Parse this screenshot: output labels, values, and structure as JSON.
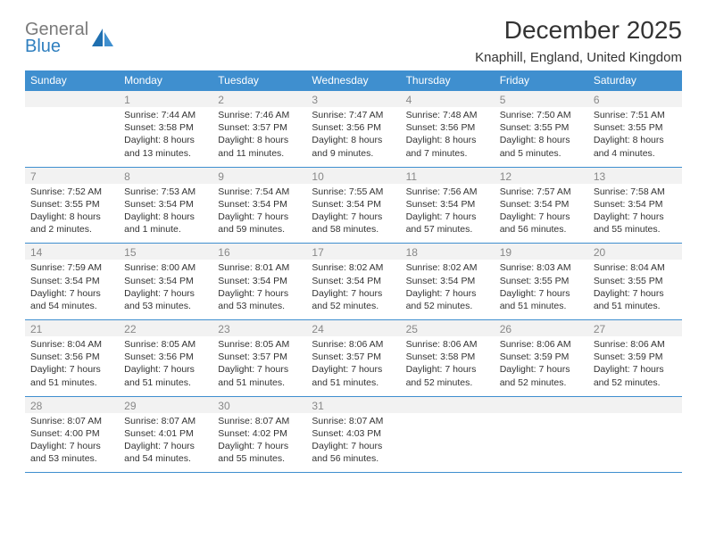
{
  "logo": {
    "line1": "General",
    "line2": "Blue"
  },
  "header": {
    "title": "December 2025",
    "location": "Knaphill, England, United Kingdom"
  },
  "colors": {
    "header_bg": "#3f8fcf",
    "daynum_bg": "#f2f2f2",
    "daynum_text": "#888888",
    "rule": "#3f8fcf"
  },
  "calendar": {
    "day_names": [
      "Sunday",
      "Monday",
      "Tuesday",
      "Wednesday",
      "Thursday",
      "Friday",
      "Saturday"
    ],
    "first_weekday_index": 1,
    "days": [
      {
        "n": "1",
        "sunrise": "Sunrise: 7:44 AM",
        "sunset": "Sunset: 3:58 PM",
        "daylight1": "Daylight: 8 hours",
        "daylight2": "and 13 minutes."
      },
      {
        "n": "2",
        "sunrise": "Sunrise: 7:46 AM",
        "sunset": "Sunset: 3:57 PM",
        "daylight1": "Daylight: 8 hours",
        "daylight2": "and 11 minutes."
      },
      {
        "n": "3",
        "sunrise": "Sunrise: 7:47 AM",
        "sunset": "Sunset: 3:56 PM",
        "daylight1": "Daylight: 8 hours",
        "daylight2": "and 9 minutes."
      },
      {
        "n": "4",
        "sunrise": "Sunrise: 7:48 AM",
        "sunset": "Sunset: 3:56 PM",
        "daylight1": "Daylight: 8 hours",
        "daylight2": "and 7 minutes."
      },
      {
        "n": "5",
        "sunrise": "Sunrise: 7:50 AM",
        "sunset": "Sunset: 3:55 PM",
        "daylight1": "Daylight: 8 hours",
        "daylight2": "and 5 minutes."
      },
      {
        "n": "6",
        "sunrise": "Sunrise: 7:51 AM",
        "sunset": "Sunset: 3:55 PM",
        "daylight1": "Daylight: 8 hours",
        "daylight2": "and 4 minutes."
      },
      {
        "n": "7",
        "sunrise": "Sunrise: 7:52 AM",
        "sunset": "Sunset: 3:55 PM",
        "daylight1": "Daylight: 8 hours",
        "daylight2": "and 2 minutes."
      },
      {
        "n": "8",
        "sunrise": "Sunrise: 7:53 AM",
        "sunset": "Sunset: 3:54 PM",
        "daylight1": "Daylight: 8 hours",
        "daylight2": "and 1 minute."
      },
      {
        "n": "9",
        "sunrise": "Sunrise: 7:54 AM",
        "sunset": "Sunset: 3:54 PM",
        "daylight1": "Daylight: 7 hours",
        "daylight2": "and 59 minutes."
      },
      {
        "n": "10",
        "sunrise": "Sunrise: 7:55 AM",
        "sunset": "Sunset: 3:54 PM",
        "daylight1": "Daylight: 7 hours",
        "daylight2": "and 58 minutes."
      },
      {
        "n": "11",
        "sunrise": "Sunrise: 7:56 AM",
        "sunset": "Sunset: 3:54 PM",
        "daylight1": "Daylight: 7 hours",
        "daylight2": "and 57 minutes."
      },
      {
        "n": "12",
        "sunrise": "Sunrise: 7:57 AM",
        "sunset": "Sunset: 3:54 PM",
        "daylight1": "Daylight: 7 hours",
        "daylight2": "and 56 minutes."
      },
      {
        "n": "13",
        "sunrise": "Sunrise: 7:58 AM",
        "sunset": "Sunset: 3:54 PM",
        "daylight1": "Daylight: 7 hours",
        "daylight2": "and 55 minutes."
      },
      {
        "n": "14",
        "sunrise": "Sunrise: 7:59 AM",
        "sunset": "Sunset: 3:54 PM",
        "daylight1": "Daylight: 7 hours",
        "daylight2": "and 54 minutes."
      },
      {
        "n": "15",
        "sunrise": "Sunrise: 8:00 AM",
        "sunset": "Sunset: 3:54 PM",
        "daylight1": "Daylight: 7 hours",
        "daylight2": "and 53 minutes."
      },
      {
        "n": "16",
        "sunrise": "Sunrise: 8:01 AM",
        "sunset": "Sunset: 3:54 PM",
        "daylight1": "Daylight: 7 hours",
        "daylight2": "and 53 minutes."
      },
      {
        "n": "17",
        "sunrise": "Sunrise: 8:02 AM",
        "sunset": "Sunset: 3:54 PM",
        "daylight1": "Daylight: 7 hours",
        "daylight2": "and 52 minutes."
      },
      {
        "n": "18",
        "sunrise": "Sunrise: 8:02 AM",
        "sunset": "Sunset: 3:54 PM",
        "daylight1": "Daylight: 7 hours",
        "daylight2": "and 52 minutes."
      },
      {
        "n": "19",
        "sunrise": "Sunrise: 8:03 AM",
        "sunset": "Sunset: 3:55 PM",
        "daylight1": "Daylight: 7 hours",
        "daylight2": "and 51 minutes."
      },
      {
        "n": "20",
        "sunrise": "Sunrise: 8:04 AM",
        "sunset": "Sunset: 3:55 PM",
        "daylight1": "Daylight: 7 hours",
        "daylight2": "and 51 minutes."
      },
      {
        "n": "21",
        "sunrise": "Sunrise: 8:04 AM",
        "sunset": "Sunset: 3:56 PM",
        "daylight1": "Daylight: 7 hours",
        "daylight2": "and 51 minutes."
      },
      {
        "n": "22",
        "sunrise": "Sunrise: 8:05 AM",
        "sunset": "Sunset: 3:56 PM",
        "daylight1": "Daylight: 7 hours",
        "daylight2": "and 51 minutes."
      },
      {
        "n": "23",
        "sunrise": "Sunrise: 8:05 AM",
        "sunset": "Sunset: 3:57 PM",
        "daylight1": "Daylight: 7 hours",
        "daylight2": "and 51 minutes."
      },
      {
        "n": "24",
        "sunrise": "Sunrise: 8:06 AM",
        "sunset": "Sunset: 3:57 PM",
        "daylight1": "Daylight: 7 hours",
        "daylight2": "and 51 minutes."
      },
      {
        "n": "25",
        "sunrise": "Sunrise: 8:06 AM",
        "sunset": "Sunset: 3:58 PM",
        "daylight1": "Daylight: 7 hours",
        "daylight2": "and 52 minutes."
      },
      {
        "n": "26",
        "sunrise": "Sunrise: 8:06 AM",
        "sunset": "Sunset: 3:59 PM",
        "daylight1": "Daylight: 7 hours",
        "daylight2": "and 52 minutes."
      },
      {
        "n": "27",
        "sunrise": "Sunrise: 8:06 AM",
        "sunset": "Sunset: 3:59 PM",
        "daylight1": "Daylight: 7 hours",
        "daylight2": "and 52 minutes."
      },
      {
        "n": "28",
        "sunrise": "Sunrise: 8:07 AM",
        "sunset": "Sunset: 4:00 PM",
        "daylight1": "Daylight: 7 hours",
        "daylight2": "and 53 minutes."
      },
      {
        "n": "29",
        "sunrise": "Sunrise: 8:07 AM",
        "sunset": "Sunset: 4:01 PM",
        "daylight1": "Daylight: 7 hours",
        "daylight2": "and 54 minutes."
      },
      {
        "n": "30",
        "sunrise": "Sunrise: 8:07 AM",
        "sunset": "Sunset: 4:02 PM",
        "daylight1": "Daylight: 7 hours",
        "daylight2": "and 55 minutes."
      },
      {
        "n": "31",
        "sunrise": "Sunrise: 8:07 AM",
        "sunset": "Sunset: 4:03 PM",
        "daylight1": "Daylight: 7 hours",
        "daylight2": "and 56 minutes."
      }
    ]
  }
}
